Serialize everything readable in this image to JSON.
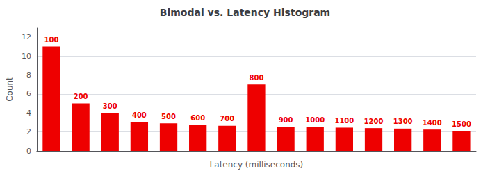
{
  "chart_data": {
    "type": "bar",
    "title": "Bimodal vs. Latency Histogram",
    "xlabel": "Latency (milliseconds)",
    "ylabel": "Count",
    "categories": [
      "100",
      "200",
      "300",
      "400",
      "500",
      "600",
      "700",
      "800",
      "900",
      "1000",
      "1100",
      "1200",
      "1300",
      "1400",
      "1500"
    ],
    "values": [
      11,
      5,
      4,
      3,
      2.9,
      2.75,
      2.65,
      7,
      2.5,
      2.5,
      2.45,
      2.4,
      2.35,
      2.25,
      2.1
    ],
    "color": "#ee0000",
    "ylim": [
      0,
      13
    ],
    "yticks": [
      0,
      2,
      4,
      6,
      8,
      10,
      12
    ],
    "grid": true,
    "tick_labels": "y"
  }
}
